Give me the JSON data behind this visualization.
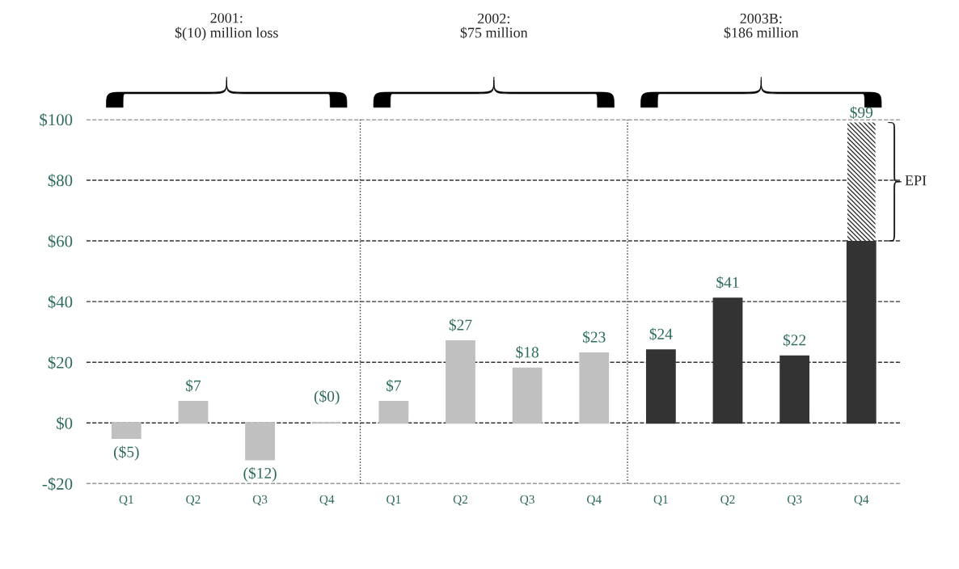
{
  "chart_data": {
    "type": "bar",
    "stacked": true,
    "categories": [
      "Q1",
      "Q2",
      "Q3",
      "Q4",
      "Q1",
      "Q2",
      "Q3",
      "Q4",
      "Q1",
      "Q2",
      "Q3",
      "Q4"
    ],
    "series": [
      {
        "colors": [
          "#c0c0c0",
          "#c0c0c0",
          "#c0c0c0",
          "#c0c0c0",
          "#c0c0c0",
          "#c0c0c0",
          "#c0c0c0",
          "#c0c0c0",
          "#333333",
          "#333333",
          "#333333",
          "#333333"
        ],
        "values": [
          -5,
          7,
          -12,
          0,
          7,
          27,
          18,
          23,
          24,
          41,
          22,
          60
        ],
        "value_labels": [
          "($5)",
          "$7",
          "($12)",
          "($0)",
          "$7",
          "$27",
          "$18",
          "$23",
          "$24",
          "$41",
          "$22",
          null
        ]
      },
      {
        "name": "EPI",
        "color": "#333333",
        "values": [
          null,
          null,
          null,
          null,
          null,
          null,
          null,
          null,
          null,
          null,
          null,
          39
        ]
      }
    ],
    "totals": [
      null,
      null,
      null,
      null,
      null,
      null,
      null,
      null,
      null,
      null,
      null,
      "$99"
    ],
    "ylim": [
      -20,
      100
    ],
    "yticks": [
      {
        "value": -20,
        "label": "-$20"
      },
      {
        "value": 0,
        "label": "$0"
      },
      {
        "value": 20,
        "label": "$20"
      },
      {
        "value": 40,
        "label": "$40"
      },
      {
        "value": 60,
        "label": "$60"
      },
      {
        "value": 80,
        "label": "$80"
      },
      {
        "value": 100,
        "label": "$100"
      }
    ],
    "grid": "y",
    "annotations": [
      "2001:\n$(10) million loss",
      "2002:\n$75 million",
      "2003B:\n$186 million"
    ]
  }
}
